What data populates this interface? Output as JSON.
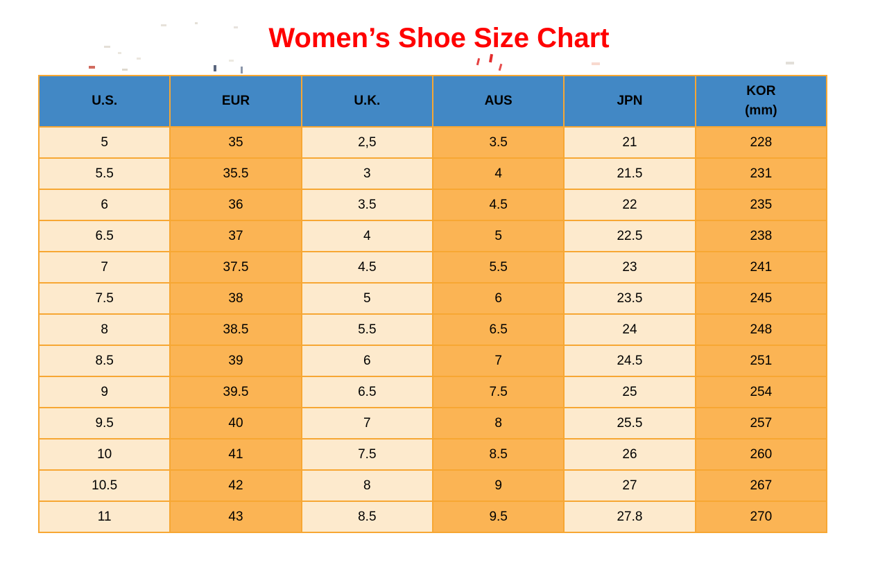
{
  "title": "Women’s Shoe Size Chart",
  "colors": {
    "title_red": "#FF0000",
    "header_blue": "#4288C5",
    "cell_cream": "#FDEACD",
    "cell_orange": "#FBB454",
    "grid_orange": "#F7A733",
    "text_black": "#000000"
  },
  "table": {
    "headers": [
      {
        "key": "us",
        "label": "U.S."
      },
      {
        "key": "eur",
        "label": "EUR"
      },
      {
        "key": "uk",
        "label": "U.K."
      },
      {
        "key": "aus",
        "label": "AUS"
      },
      {
        "key": "jpn",
        "label": "JPN"
      },
      {
        "key": "kor",
        "label": "KOR",
        "sublabel": "(mm)"
      }
    ],
    "rows": [
      [
        "5",
        "35",
        "2,5",
        "3.5",
        "21",
        "228"
      ],
      [
        "5.5",
        "35.5",
        "3",
        "4",
        "21.5",
        "231"
      ],
      [
        "6",
        "36",
        "3.5",
        "4.5",
        "22",
        "235"
      ],
      [
        "6.5",
        "37",
        "4",
        "5",
        "22.5",
        "238"
      ],
      [
        "7",
        "37.5",
        "4.5",
        "5.5",
        "23",
        "241"
      ],
      [
        "7.5",
        "38",
        "5",
        "6",
        "23.5",
        "245"
      ],
      [
        "8",
        "38.5",
        "5.5",
        "6.5",
        "24",
        "248"
      ],
      [
        "8.5",
        "39",
        "6",
        "7",
        "24.5",
        "251"
      ],
      [
        "9",
        "39.5",
        "6.5",
        "7.5",
        "25",
        "254"
      ],
      [
        "9.5",
        "40",
        "7",
        "8",
        "25.5",
        "257"
      ],
      [
        "10",
        "41",
        "7.5",
        "8.5",
        "26",
        "260"
      ],
      [
        "10.5",
        "42",
        "8",
        "9",
        "27",
        "267"
      ],
      [
        "11",
        "43",
        "8.5",
        "9.5",
        "27.8",
        "270"
      ]
    ]
  },
  "chart_data": {
    "type": "table",
    "title": "Women’s Shoe Size Chart",
    "columns": [
      "U.S.",
      "EUR",
      "U.K.",
      "AUS",
      "JPN",
      "KOR (mm)"
    ],
    "rows": [
      [
        "5",
        "35",
        "2,5",
        "3.5",
        "21",
        "228"
      ],
      [
        "5.5",
        "35.5",
        "3",
        "4",
        "21.5",
        "231"
      ],
      [
        "6",
        "36",
        "3.5",
        "4.5",
        "22",
        "235"
      ],
      [
        "6.5",
        "37",
        "4",
        "5",
        "22.5",
        "238"
      ],
      [
        "7",
        "37.5",
        "4.5",
        "5.5",
        "23",
        "241"
      ],
      [
        "7.5",
        "38",
        "5",
        "6",
        "23.5",
        "245"
      ],
      [
        "8",
        "38.5",
        "5.5",
        "6.5",
        "24",
        "248"
      ],
      [
        "8.5",
        "39",
        "6",
        "7",
        "24.5",
        "251"
      ],
      [
        "9",
        "39.5",
        "6.5",
        "7.5",
        "25",
        "254"
      ],
      [
        "9.5",
        "40",
        "7",
        "8",
        "25.5",
        "257"
      ],
      [
        "10",
        "41",
        "7.5",
        "8.5",
        "26",
        "260"
      ],
      [
        "10.5",
        "42",
        "8",
        "9",
        "27",
        "267"
      ],
      [
        "11",
        "43",
        "8.5",
        "9.5",
        "27.8",
        "270"
      ]
    ],
    "layout": {
      "header_fill": "#4288C5",
      "odd_col_fill": "#FDEACD",
      "even_col_fill": "#FBB454",
      "grid": true
    }
  }
}
